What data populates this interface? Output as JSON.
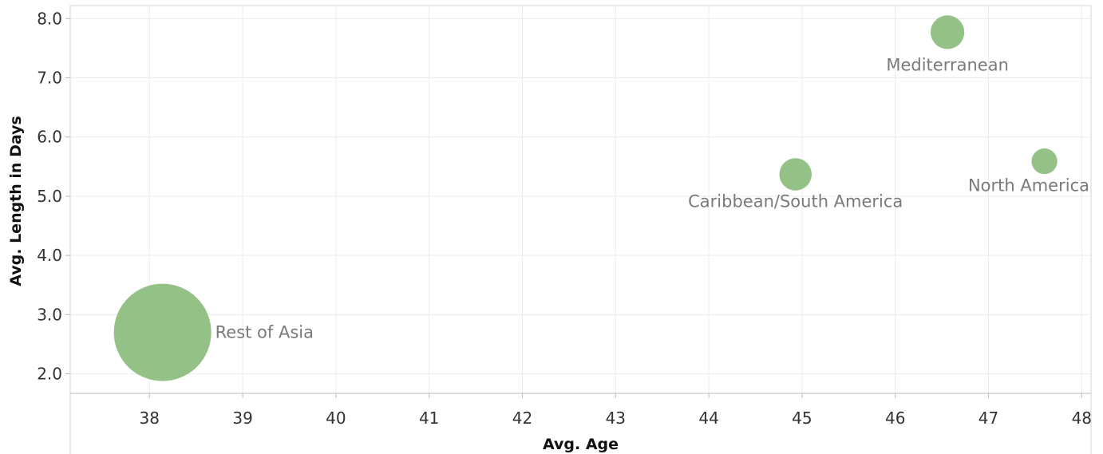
{
  "chart_data": {
    "type": "scatter",
    "title": "",
    "xlabel": "Avg. Age",
    "ylabel": "Avg. Length in Days",
    "xlim": [
      37.15,
      48.1
    ],
    "ylim": [
      1.67,
      8.22
    ],
    "xticks": [
      "38",
      "39",
      "40",
      "41",
      "42",
      "43",
      "44",
      "45",
      "46",
      "47",
      "48"
    ],
    "yticks": [
      "2.0",
      "3.0",
      "4.0",
      "5.0",
      "6.0",
      "7.0",
      "8.0"
    ],
    "grid": true,
    "color": "#8dbe80",
    "points": [
      {
        "label": "Rest of Asia",
        "x": 38.14,
        "y": 2.7,
        "size_rel": 1.0,
        "label_pos": "right"
      },
      {
        "label": "Mediterranean",
        "x": 46.56,
        "y": 7.77,
        "size_rel": 0.12,
        "label_pos": "below"
      },
      {
        "label": "Caribbean/South America",
        "x": 44.93,
        "y": 5.37,
        "size_rel": 0.11,
        "label_pos": "below-left"
      },
      {
        "label": "North America",
        "x": 47.6,
        "y": 5.59,
        "size_rel": 0.07,
        "label_pos": "below-left"
      }
    ]
  }
}
